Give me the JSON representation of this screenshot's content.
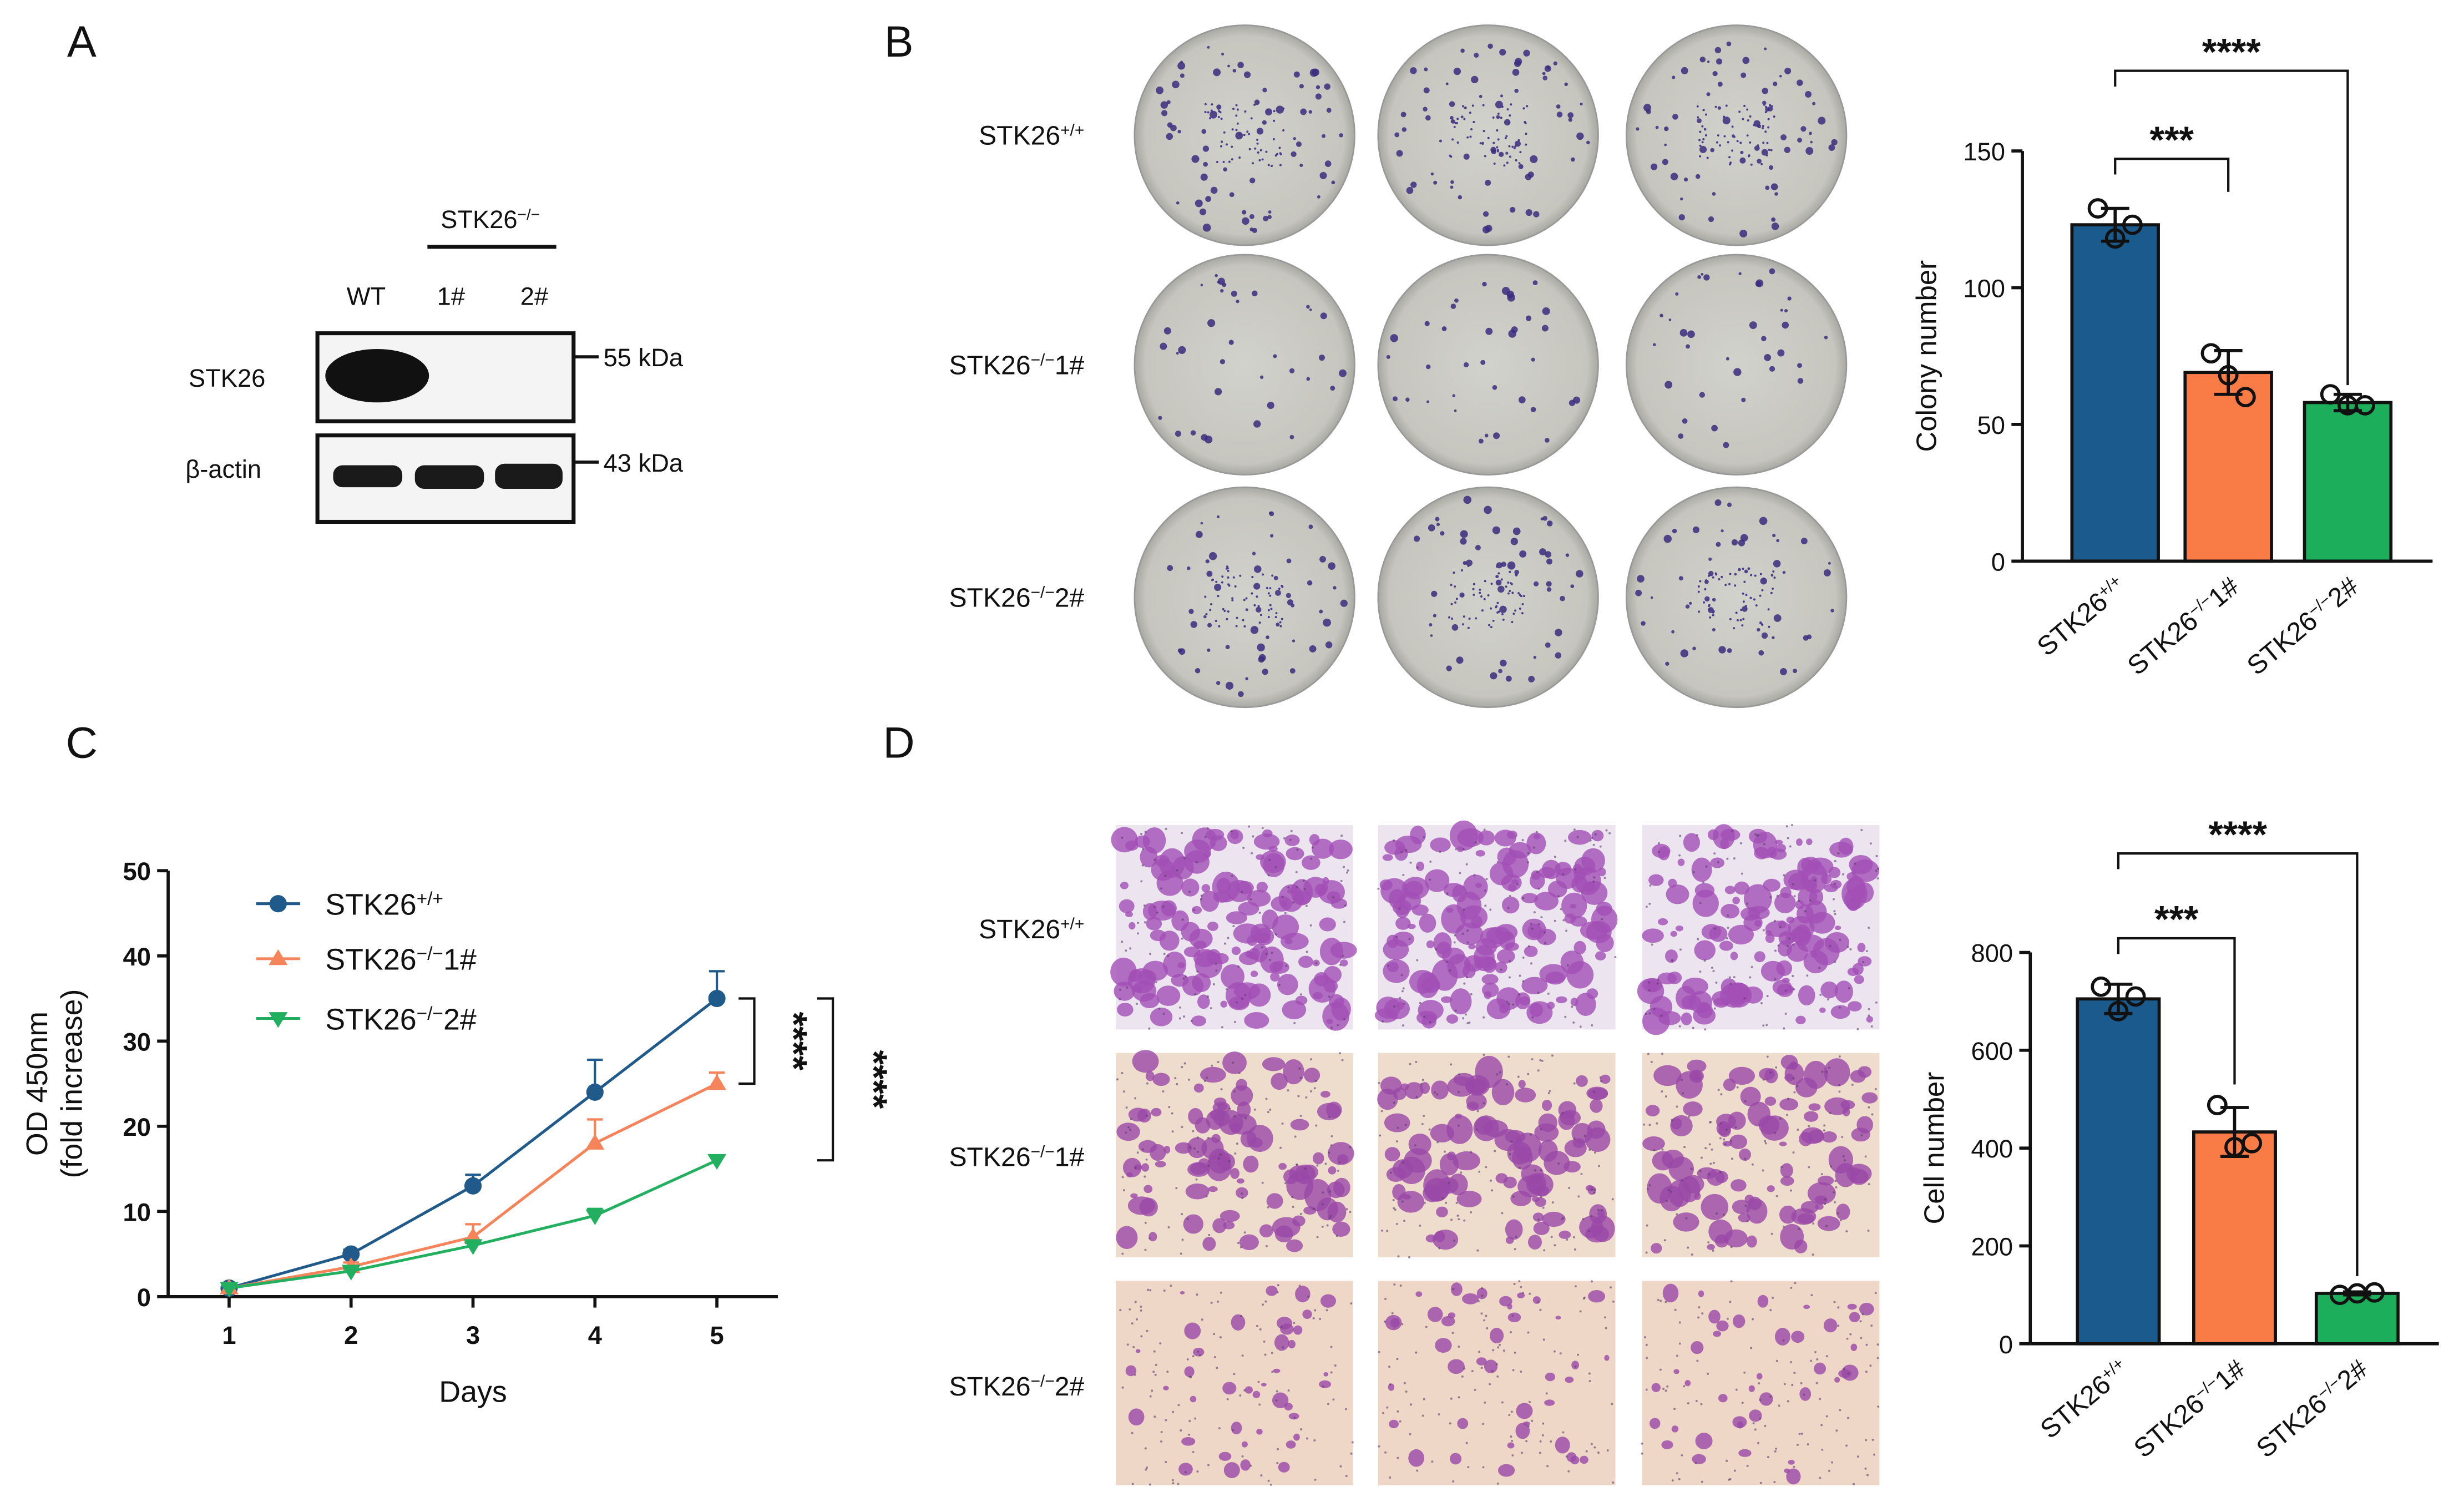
{
  "panel_labels": [
    "A",
    "B",
    "C",
    "D"
  ],
  "western_blot": {
    "group_label": {
      "base": "STK26",
      "sup": "−/−"
    },
    "lanes": [
      "WT",
      "1#",
      "2#"
    ],
    "rows": [
      "STK26",
      "β-actin"
    ],
    "markers": [
      "55 kDa",
      "43 kDa"
    ]
  },
  "colony_rows": [
    {
      "base": "STK26",
      "sup": "+/+"
    },
    {
      "base": "STK26",
      "sup": "−/−",
      "suffix": "1#"
    },
    {
      "base": "STK26",
      "sup": "−/−",
      "suffix": "2#"
    }
  ],
  "transwell_rows": [
    {
      "base": "STK26",
      "sup": "+/+"
    },
    {
      "base": "STK26",
      "sup": "−/−",
      "suffix": "1#"
    },
    {
      "base": "STK26",
      "sup": "−/−",
      "suffix": "2#"
    }
  ],
  "chart_data": [
    {
      "type": "bar",
      "ylabel": "Colony number",
      "categories": [
        {
          "base": "STK26",
          "sup": "+/+"
        },
        {
          "base": "STK26",
          "sup": "−/−",
          "suffix": "1#"
        },
        {
          "base": "STK26",
          "sup": "−/−",
          "suffix": "2#"
        }
      ],
      "values": [
        123,
        69,
        58
      ],
      "errors": [
        6,
        8,
        3
      ],
      "points": [
        [
          129,
          118,
          123
        ],
        [
          76,
          68,
          60
        ],
        [
          61,
          57,
          57
        ]
      ],
      "colors": [
        "#1b5a8c",
        "#f97c47",
        "#1cae5b"
      ],
      "ylim": [
        0,
        150
      ],
      "yticks": [
        0,
        50,
        100,
        150
      ],
      "annotations": [
        "***",
        "****"
      ]
    },
    {
      "type": "line",
      "xlabel": "Days",
      "ylabel": [
        "OD 450nm",
        "(fold increase)"
      ],
      "x": [
        1,
        2,
        3,
        4,
        5
      ],
      "xlim": [
        0.5,
        5.5
      ],
      "xticks": [
        1,
        2,
        3,
        4,
        5
      ],
      "ylim": [
        0,
        50
      ],
      "yticks": [
        0,
        10,
        20,
        30,
        40,
        50
      ],
      "series": [
        {
          "name": {
            "base": "STK26",
            "sup": "+/+"
          },
          "color": "#1f5a8a",
          "marker": "circle",
          "values": [
            1,
            5,
            13,
            24,
            35
          ],
          "errors": [
            0.5,
            0.5,
            1.3,
            3.8,
            3.2
          ]
        },
        {
          "name": {
            "base": "STK26",
            "sup": "−/−",
            "suffix": "1#"
          },
          "color": "#f5845a",
          "marker": "triangle-up",
          "values": [
            1,
            3.5,
            7,
            18,
            25
          ],
          "errors": [
            0.5,
            0.5,
            1.5,
            2.8,
            1.3
          ]
        },
        {
          "name": {
            "base": "STK26",
            "sup": "−/−",
            "suffix": "2#"
          },
          "color": "#22b060",
          "marker": "triangle-down",
          "values": [
            1,
            3,
            6,
            9.5,
            16
          ],
          "errors": [
            0.3,
            0.3,
            0.3,
            0.8,
            0.5
          ]
        }
      ],
      "annotations": [
        "****",
        "****"
      ]
    },
    {
      "type": "bar",
      "ylabel": "Cell number",
      "categories": [
        {
          "base": "STK26",
          "sup": "+/+"
        },
        {
          "base": "STK26",
          "sup": "−/−",
          "suffix": "1#"
        },
        {
          "base": "STK26",
          "sup": "−/−",
          "suffix": "2#"
        }
      ],
      "values": [
        705,
        433,
        103
      ],
      "errors": [
        30,
        50,
        3
      ],
      "points": [
        [
          730,
          680,
          710
        ],
        [
          488,
          402,
          410
        ],
        [
          100,
          103,
          105
        ]
      ],
      "colors": [
        "#1b5a8c",
        "#f97c47",
        "#1cae5b"
      ],
      "ylim": [
        0,
        800
      ],
      "yticks": [
        0,
        200,
        400,
        600,
        800
      ],
      "annotations": [
        "***",
        "****"
      ]
    }
  ]
}
